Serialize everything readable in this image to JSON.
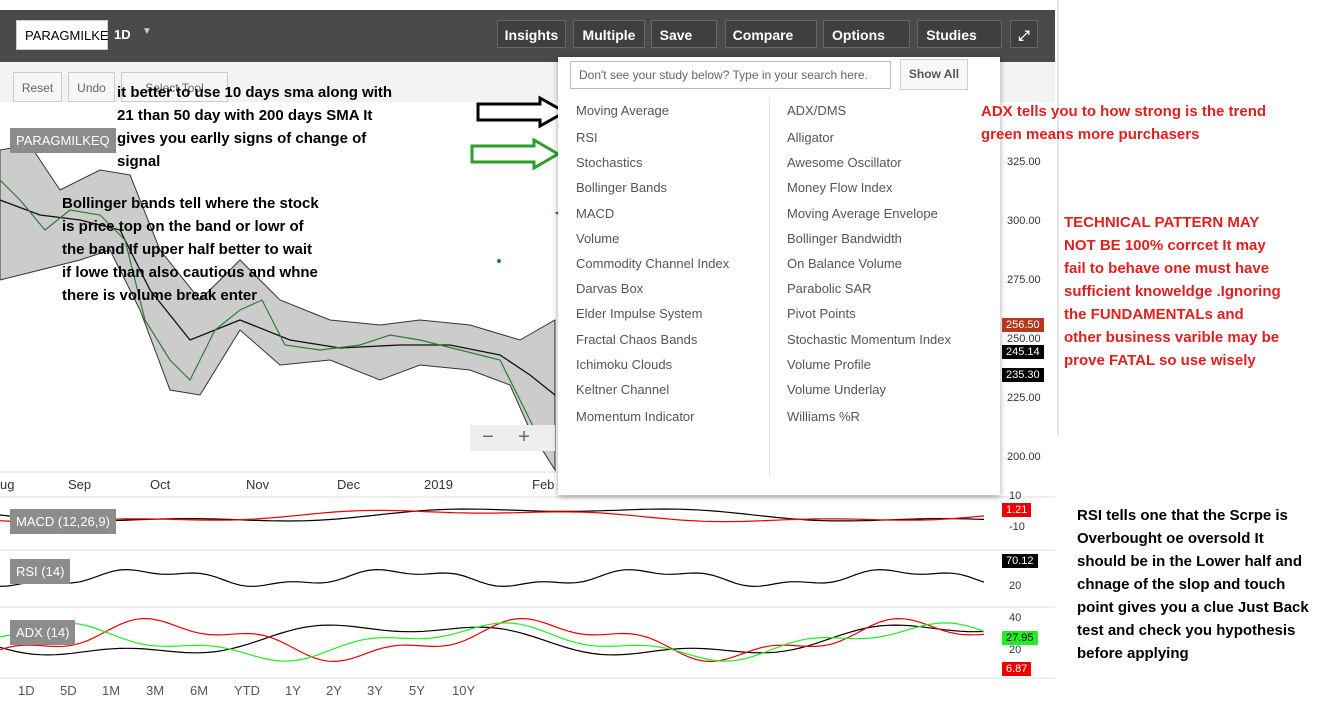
{
  "toolbar": {
    "symbol": "PARAGMILKE",
    "interval": "1D",
    "buttons": [
      "Insights",
      "Multiple",
      "Save",
      "Compare",
      "Options",
      "Studies"
    ]
  },
  "drawing_tools": [
    "Reset",
    "Undo",
    "Select Tool"
  ],
  "chart": {
    "symbol_label": "PARAGMILKEQ",
    "y_axis": [
      "325.00",
      "300.00",
      "275.00",
      "250.00",
      "225.00",
      "200.00"
    ],
    "x_axis": [
      "ug",
      "Sep",
      "Oct",
      "Nov",
      "Dec",
      "2019",
      "Feb"
    ],
    "price_badges": [
      "256.50",
      "245.14",
      "235.30"
    ]
  },
  "panels": [
    {
      "label": "MACD (12,26,9)",
      "axis": [
        "10",
        "-10"
      ],
      "badge": "1.21"
    },
    {
      "label": "RSI (14)",
      "axis": [
        "20"
      ],
      "badge": "70.12"
    },
    {
      "label": "ADX (14)",
      "axis": [
        "40",
        "20"
      ],
      "badges": [
        "27.95",
        "6.87"
      ]
    }
  ],
  "ranges": [
    "1D",
    "5D",
    "1M",
    "3M",
    "6M",
    "YTD",
    "1Y",
    "2Y",
    "3Y",
    "5Y",
    "10Y"
  ],
  "study_menu": {
    "search_placeholder": "Don't see your study below? Type in your search here.",
    "show_all": "Show All",
    "left": [
      "Moving Average",
      "RSI",
      "Stochastics",
      "Bollinger Bands",
      "MACD",
      "Volume",
      "Commodity Channel Index",
      "Darvas Box",
      "Elder Impulse System",
      "Fractal Chaos Bands",
      "Ichimoku Clouds",
      "Keltner Channel",
      "Momentum Indicator"
    ],
    "right": [
      "ADX/DMS",
      "Alligator",
      "Awesome Oscillator",
      "Money Flow Index",
      "Moving Average Envelope",
      "Bollinger Bandwidth",
      "On Balance Volume",
      "Parabolic SAR",
      "Pivot Points",
      "Stochastic Momentum Index",
      "Volume Profile",
      "Volume Underlay",
      "Williams %R"
    ]
  },
  "annotations": {
    "sma_note": [
      "it better to use 10 days sma along with",
      "21 than  50 day with 200 days SMA It",
      "gives you earlly signs of change of",
      "signal"
    ],
    "bollinger_note": [
      "Bollinger bands tell where the stock",
      "is price top on the band or lowr of",
      "the band If upper half better to wait",
      "if lowe than also cautious and whne",
      "there is volume break enter"
    ],
    "adx_note": [
      "ADX tells you to how strong is the trend",
      "green means more purchasers"
    ],
    "pattern_note": [
      "TECHNICAL PATTERN MAY",
      "NOT BE 100% corrcet It may",
      "fail to behave one must have",
      "sufficient knoweldge .Ignoring",
      "the FUNDAMENTALs and",
      "other business varible may be",
      "prove FATAL so use wisely"
    ],
    "rsi_note": [
      "RSI tells one that the Scrpe is",
      "Overbought oe oversold It",
      "should be in the Lower half and",
      "chnage of the slop and touch",
      "point gives you a clue Just Back",
      "test and check you hypothesis",
      "before applying"
    ]
  }
}
